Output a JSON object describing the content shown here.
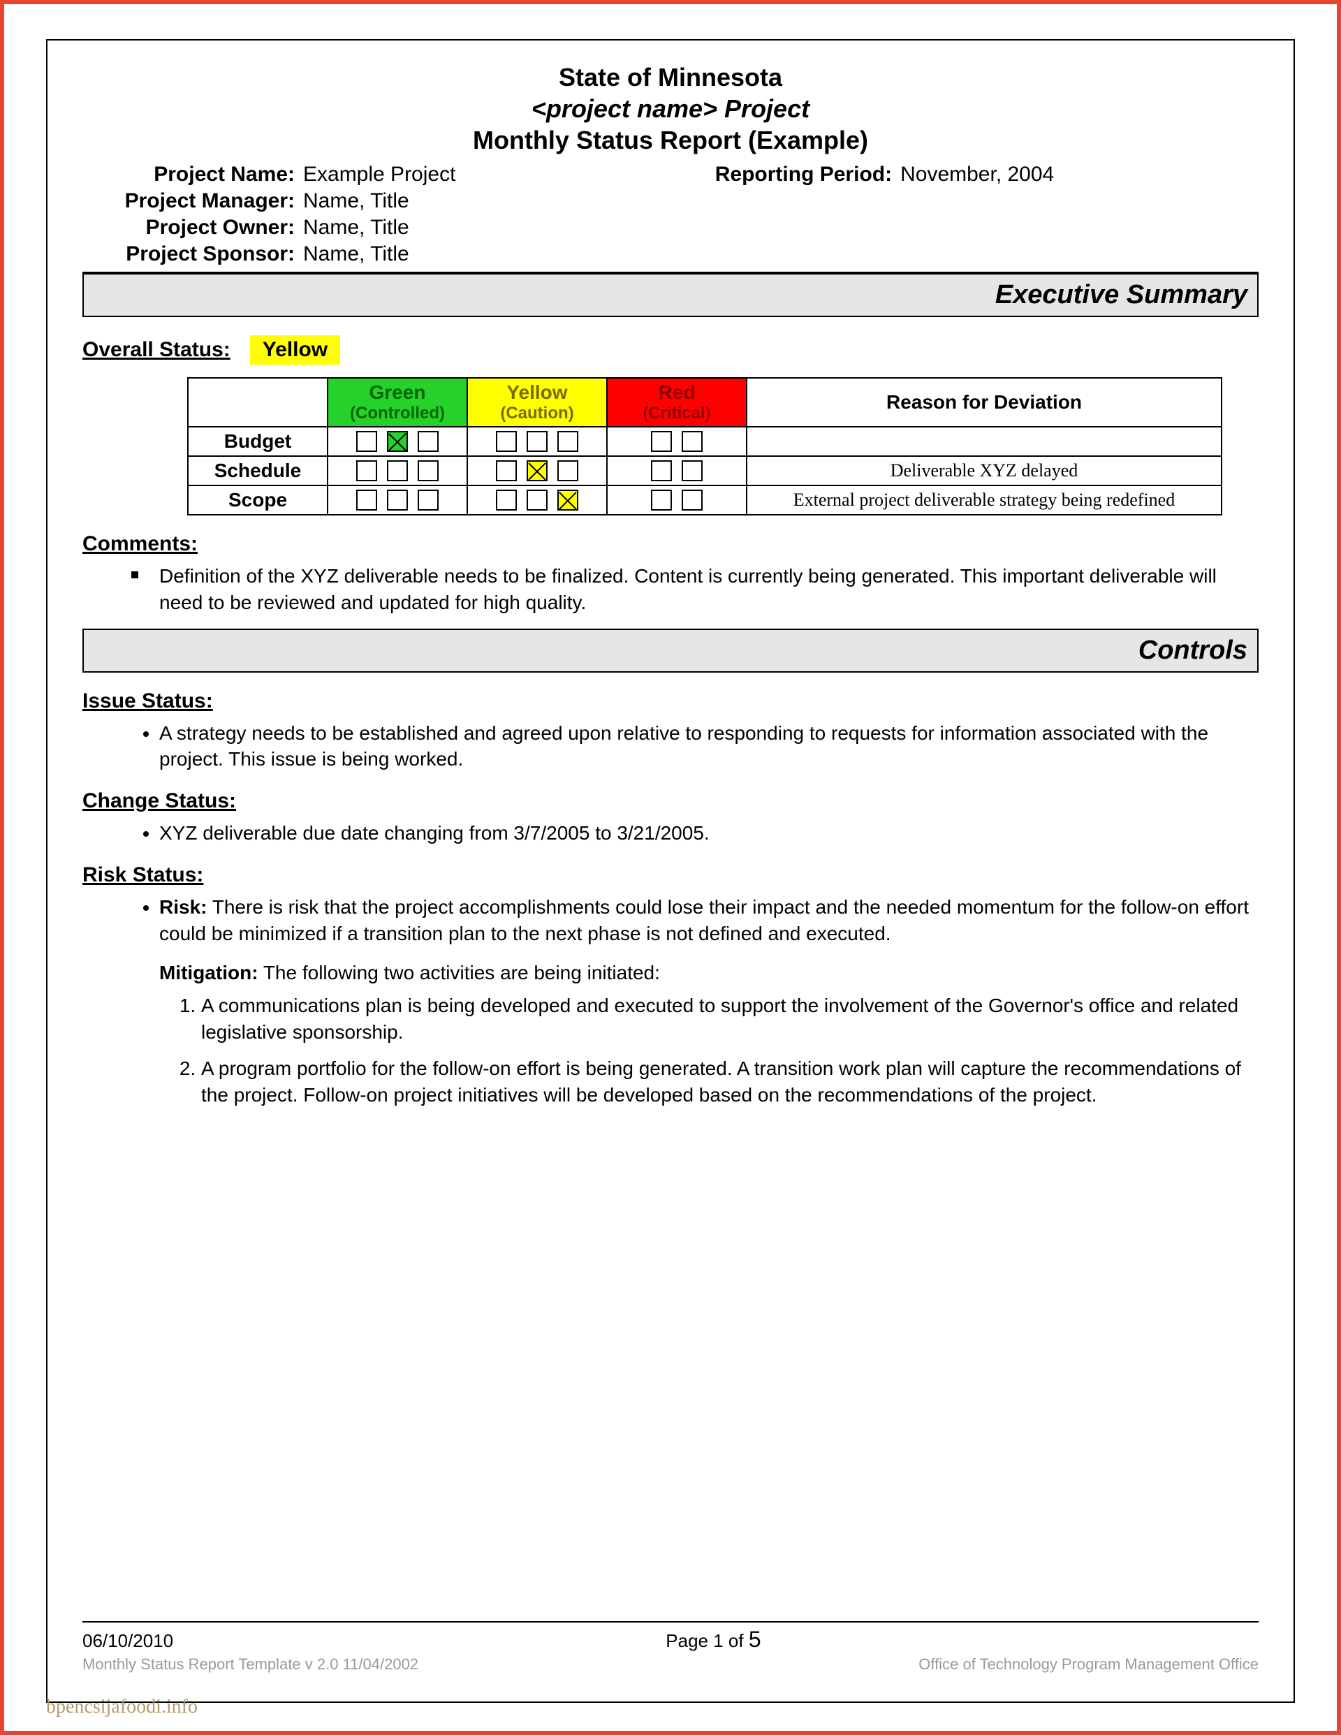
{
  "colors": {
    "frame_border": "#e8472f",
    "banner_bg": "#e6e6e6",
    "green": "#26d22a",
    "yellow": "#ffff00",
    "red": "#ff0000",
    "red_text": "#8b0000",
    "green_text": "#006400",
    "yellow_text": "#7a6a00",
    "footer_gray": "#9a9a9a"
  },
  "title": {
    "line1": "State of Minnesota",
    "line2_prefix": "<",
    "line2_italic": "project name",
    "line2_suffix": "> Project",
    "line3": "Monthly Status Report (Example)"
  },
  "meta": {
    "project_name_label": "Project Name:",
    "project_name": "Example Project",
    "reporting_period_label": "Reporting Period:",
    "reporting_period": "November, 2004",
    "project_manager_label": "Project Manager:",
    "project_manager": "Name, Title",
    "project_owner_label": "Project Owner:",
    "project_owner": "Name, Title",
    "project_sponsor_label": "Project Sponsor:",
    "project_sponsor": "Name, Title"
  },
  "exec_summary": {
    "banner": "Executive Summary",
    "overall_label": "Overall Status:",
    "overall_value": "Yellow",
    "overall_bg": "#ffff00",
    "table": {
      "cols": [
        {
          "top": "Green",
          "sub": "(Controlled)",
          "bg": "#26d22a",
          "text": "#006400"
        },
        {
          "top": "Yellow",
          "sub": "(Caution)",
          "bg": "#ffff00",
          "text": "#7a6a00"
        },
        {
          "top": "Red",
          "sub": "(Critical)",
          "bg": "#ff0000",
          "text": "#8b0000"
        }
      ],
      "reason_header": "Reason for Deviation",
      "rows": [
        {
          "label": "Budget",
          "checks": [
            [
              0,
              1,
              0
            ],
            [
              0,
              0,
              0
            ],
            [
              0,
              0
            ]
          ],
          "reason": ""
        },
        {
          "label": "Schedule",
          "checks": [
            [
              0,
              0,
              0
            ],
            [
              0,
              1,
              0
            ],
            [
              0,
              0
            ]
          ],
          "reason": "Deliverable XYZ delayed"
        },
        {
          "label": "Scope",
          "checks": [
            [
              0,
              0,
              0
            ],
            [
              0,
              0,
              1
            ],
            [
              0,
              0
            ]
          ],
          "reason": "External project deliverable strategy being redefined"
        }
      ]
    },
    "comments_label": "Comments:",
    "comments": [
      "Definition of the XYZ deliverable needs to be finalized.  Content is currently being generated.  This important deliverable will need to be reviewed and updated for high quality."
    ]
  },
  "controls": {
    "banner": "Controls",
    "issue_label": "Issue Status:",
    "issues": [
      "A strategy needs to be established and agreed upon relative to responding to requests for information associated with the project.  This issue is being worked."
    ],
    "change_label": "Change Status:",
    "changes": [
      "XYZ deliverable due date changing from 3/7/2005 to 3/21/2005."
    ],
    "risk_label": "Risk Status:",
    "risk_prefix": "Risk:",
    "risk_text": "There is risk that the project accomplishments could lose their impact and the needed momentum for the follow-on effort could be minimized if a transition plan to the next phase is not defined and executed.",
    "mitigation_prefix": "Mitigation:",
    "mitigation_intro": "The following two activities are being initiated:",
    "mitigations": [
      "A communications plan is being developed and executed to support the involvement of the Governor's office and related legislative sponsorship.",
      "A program portfolio for the follow-on effort is being generated. A transition work plan will capture the recommendations of the project. Follow-on project initiatives will be developed based on the recommendations of the project."
    ]
  },
  "footer": {
    "date": "06/10/2010",
    "page_prefix": "Page 1 of ",
    "page_total": "5",
    "template_left": "Monthly Status Report Template  v 2.0  11/04/2002",
    "template_right": "Office of Technology Program Management Office"
  },
  "watermark": "bpencsijafoodi.info"
}
